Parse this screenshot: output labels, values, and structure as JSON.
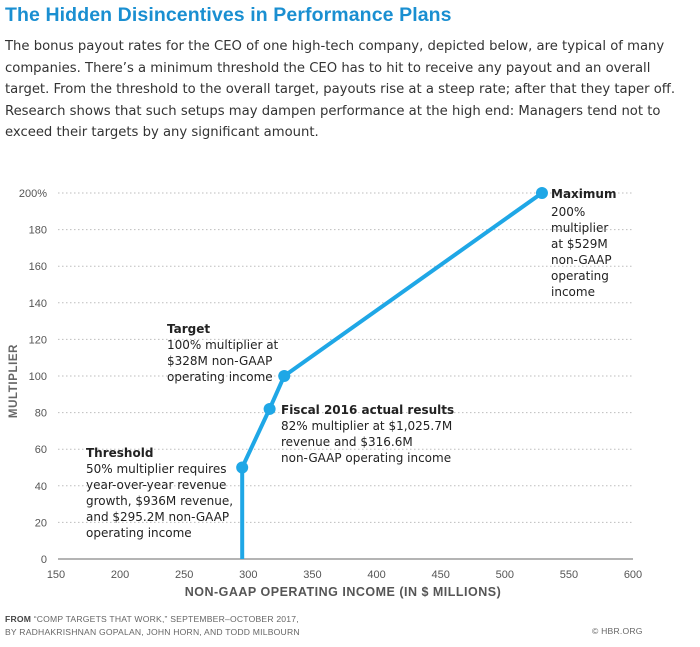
{
  "headline": "The Hidden Disincentives in Performance Plans",
  "intro": "The bonus payout rates for the CEO of one high-tech company, depicted below, are typical of many companies. There’s a minimum threshold the CEO has to hit to receive any payout and an overall target. From the threshold to the overall target, payouts rise at a steep rate; after that they taper off. Research shows that such setups may dampen performance at the high end: Managers tend not to exceed their targets by any significant amount.",
  "chart_data": {
    "type": "line",
    "xlabel": "NON-GAAP OPERATING INCOME (IN $ MILLIONS)",
    "ylabel": "MULTIPLIER",
    "xlim": [
      150,
      600
    ],
    "ylim": [
      0,
      200
    ],
    "x_ticks": [
      "150",
      "200",
      "250",
      "300",
      "350",
      "400",
      "450",
      "500",
      "550",
      "600"
    ],
    "y_ticks": [
      "0",
      "20",
      "40",
      "60",
      "80",
      "100",
      "120",
      "140",
      "160",
      "180",
      "200%"
    ],
    "grid": "horizontal dotted",
    "line_color": "#1fa7e6",
    "series": [
      {
        "points": [
          {
            "x": 295.2,
            "y": 0
          },
          {
            "x": 295.2,
            "y": 50
          },
          {
            "x": 316.6,
            "y": 82
          },
          {
            "x": 328,
            "y": 100
          },
          {
            "x": 529,
            "y": 200
          }
        ]
      }
    ],
    "markers": [
      {
        "x": 295.2,
        "y": 50
      },
      {
        "x": 316.6,
        "y": 82
      },
      {
        "x": 328,
        "y": 100
      },
      {
        "x": 529,
        "y": 200
      }
    ],
    "annotations": [
      {
        "title": "Maximum",
        "lines": [
          "200%",
          "multiplier",
          "at $529M",
          "non-GAAP",
          "operating",
          "income"
        ]
      },
      {
        "title": "Target",
        "lines": [
          "100% multiplier at",
          "$328M non-GAAP",
          "operating income"
        ]
      },
      {
        "title": "Fiscal 2016 actual results",
        "lines": [
          "82% multiplier at $1,025.7M",
          "revenue and $316.6M",
          "non-GAAP operating income"
        ]
      },
      {
        "title": "Threshold",
        "lines": [
          "50% multiplier requires",
          "year-over-year revenue",
          "growth, $936M revenue,",
          "and $295.2M non-GAAP",
          "operating income"
        ]
      }
    ]
  },
  "footer": {
    "source_label": "FROM",
    "source_line1": "“COMP TARGETS THAT WORK,” SEPTEMBER–OCTOBER 2017,",
    "source_line2": "BY RADHAKRISHNAN GOPALAN, JOHN HORN, AND TODD MILBOURN",
    "credit": "© HBR.ORG"
  }
}
